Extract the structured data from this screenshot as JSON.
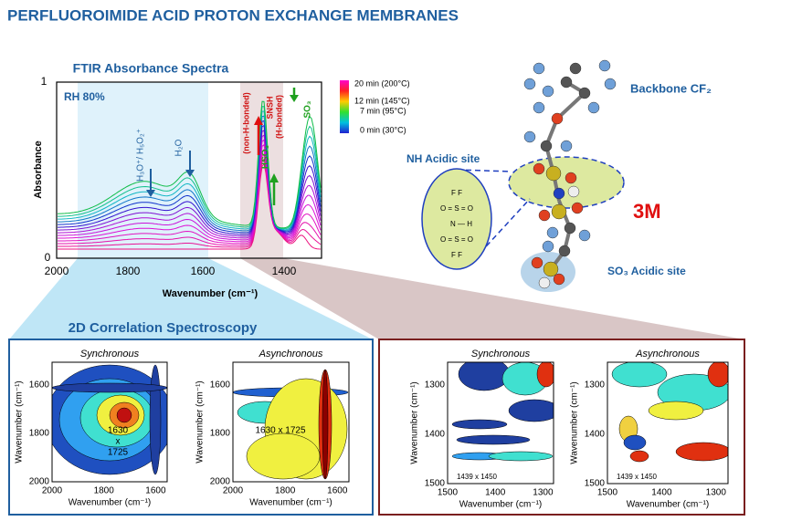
{
  "header": {
    "title": "PERFLUOROIMIDE ACID PROTON EXCHANGE MEMBRANES"
  },
  "ftir": {
    "title": "FTIR Absorbance Spectra",
    "condition": "RH 80%",
    "y_label": "Absorbance",
    "x_label": "Wavenumber (cm⁻¹)",
    "yticks": [
      "1",
      "0"
    ],
    "xticks": [
      "2000",
      "1800",
      "1600",
      "1400"
    ],
    "annotations": [
      "H₃O⁺/ H₅O₂⁺",
      "H₂O",
      "(non-H-bonded)",
      "SNSH",
      "(H-bonded)",
      "HSO₃",
      "SO₃"
    ],
    "legend": [
      "20 min (200°C)",
      "12 min (145°C)",
      "7 min (95°C)",
      "0 min (30°C)"
    ]
  },
  "molecule": {
    "backbone": "Backbone CF₂",
    "nh_site": "NH Acidic site",
    "so3_site": "SO₃ Acidic site",
    "logo": "3M",
    "inset": [
      "F     F",
      "O = S = O",
      "N — H",
      "O = S = O",
      "F     F"
    ]
  },
  "correlation": {
    "title": "2D Correlation Spectroscopy",
    "panels": [
      {
        "title": "Synchronous",
        "xticks": [
          "2000",
          "1800",
          "1600"
        ],
        "yticks": [
          "1600",
          "1800",
          "2000"
        ],
        "x_label": "Wavenumber (cm⁻¹)",
        "y_label": "Wavenumber (cm⁻¹)",
        "annotation": [
          "1630",
          "x",
          "1725"
        ]
      },
      {
        "title": "Asynchronous",
        "xticks": [
          "2000",
          "1800",
          "1600"
        ],
        "yticks": [
          "1600",
          "1800",
          "2000"
        ],
        "x_label": "Wavenumber (cm⁻¹)",
        "y_label": "Wavenumber (cm⁻¹)",
        "annotation": [
          "1630 x 1725"
        ]
      },
      {
        "title": "Synchronous",
        "xticks": [
          "1500",
          "1400",
          "1300"
        ],
        "yticks": [
          "1300",
          "1400",
          "1500"
        ],
        "x_label": "Wavenumber (cm⁻¹)",
        "y_label": "Wavenumber (cm⁻¹)",
        "annotation": [
          "1439 x 1450"
        ]
      },
      {
        "title": "Asynchronous",
        "xticks": [
          "1500",
          "1400",
          "1300"
        ],
        "yticks": [
          "1300",
          "1400",
          "1500"
        ],
        "x_label": "Wavenumber (cm⁻¹)",
        "y_label": "Wavenumber (cm⁻¹)",
        "annotation": [
          "1439 x 1450"
        ]
      }
    ]
  }
}
